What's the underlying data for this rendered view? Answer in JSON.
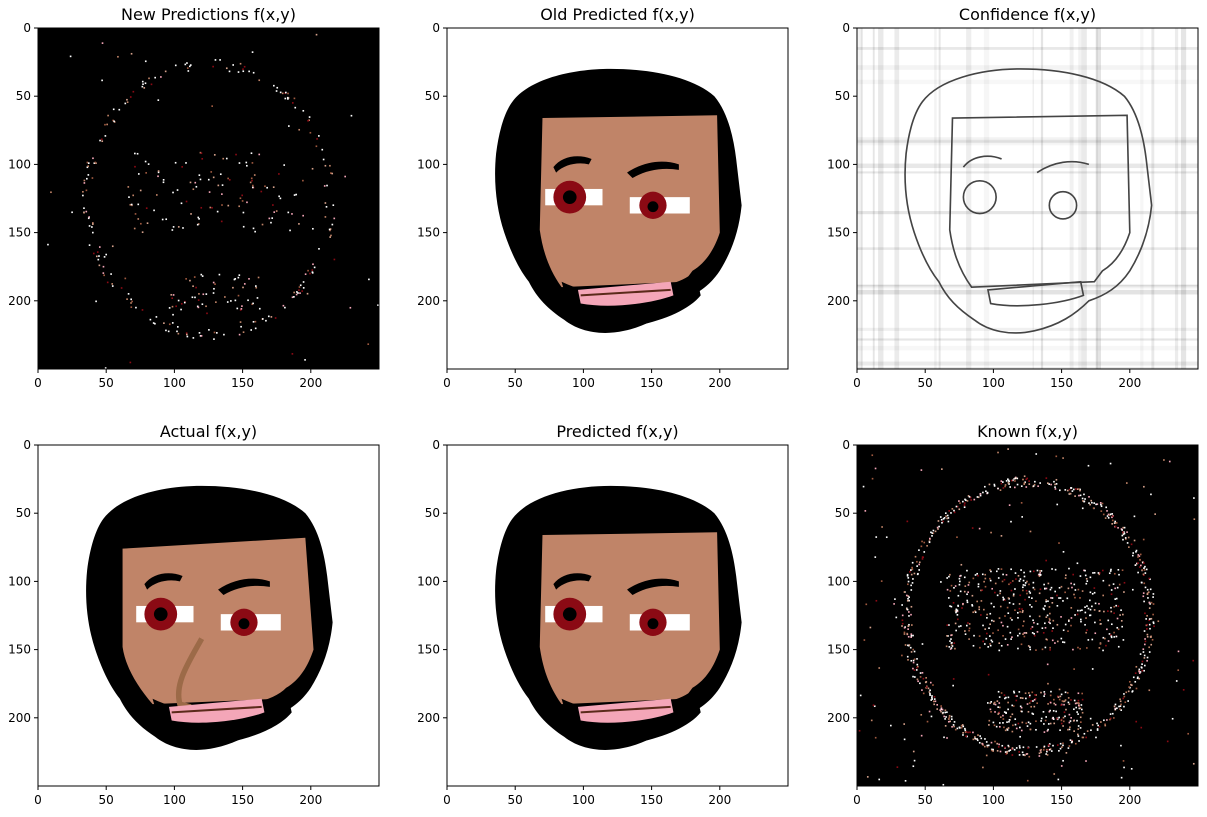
{
  "chart_data": [
    {
      "type": "heatmap",
      "title": "New Predictions f(x,y)",
      "xticks": [
        "0",
        "50",
        "100",
        "150",
        "200"
      ],
      "yticks": [
        "0",
        "50",
        "100",
        "150",
        "200"
      ],
      "xlim": [
        0,
        250
      ],
      "ylim": [
        250,
        0
      ],
      "content": "sparse-colored-pixels-on-black",
      "background": "#000000"
    },
    {
      "type": "heatmap",
      "title": "Old Predicted f(x,y)",
      "xticks": [
        "0",
        "50",
        "100",
        "150",
        "200"
      ],
      "yticks": [
        "0",
        "50",
        "100",
        "150",
        "200"
      ],
      "xlim": [
        0,
        250
      ],
      "ylim": [
        250,
        0
      ],
      "content": "face-image",
      "background": "#ffffff"
    },
    {
      "type": "heatmap",
      "title": "Confidence f(x,y)",
      "xticks": [
        "0",
        "50",
        "100",
        "150",
        "200"
      ],
      "yticks": [
        "0",
        "50",
        "100",
        "150",
        "200"
      ],
      "xlim": [
        0,
        250
      ],
      "ylim": [
        250,
        0
      ],
      "content": "grayscale-edge-map",
      "background": "#ffffff"
    },
    {
      "type": "heatmap",
      "title": "Actual f(x,y)",
      "xticks": [
        "0",
        "50",
        "100",
        "150",
        "200"
      ],
      "yticks": [
        "0",
        "50",
        "100",
        "150",
        "200"
      ],
      "xlim": [
        0,
        250
      ],
      "ylim": [
        250,
        0
      ],
      "content": "face-image",
      "background": "#ffffff"
    },
    {
      "type": "heatmap",
      "title": "Predicted f(x,y)",
      "xticks": [
        "0",
        "50",
        "100",
        "150",
        "200"
      ],
      "yticks": [
        "0",
        "50",
        "100",
        "150",
        "200"
      ],
      "xlim": [
        0,
        250
      ],
      "ylim": [
        250,
        0
      ],
      "content": "face-image",
      "background": "#ffffff"
    },
    {
      "type": "heatmap",
      "title": "Known f(x,y)",
      "xticks": [
        "0",
        "50",
        "100",
        "150",
        "200"
      ],
      "yticks": [
        "0",
        "50",
        "100",
        "150",
        "200"
      ],
      "xlim": [
        0,
        250
      ],
      "ylim": [
        250,
        0
      ],
      "content": "sparse-colored-pixels-on-black",
      "background": "#000000"
    }
  ],
  "colors": {
    "skin": "#c08468",
    "hair": "#000000",
    "eye_white": "#ffffff",
    "iris": "#8b0a14",
    "pupil": "#000000",
    "lip": "#f4a6b8",
    "lip_line": "#5a2a1a",
    "nose_line": "#9c6a48",
    "beard_edge": "#d49a7a"
  }
}
